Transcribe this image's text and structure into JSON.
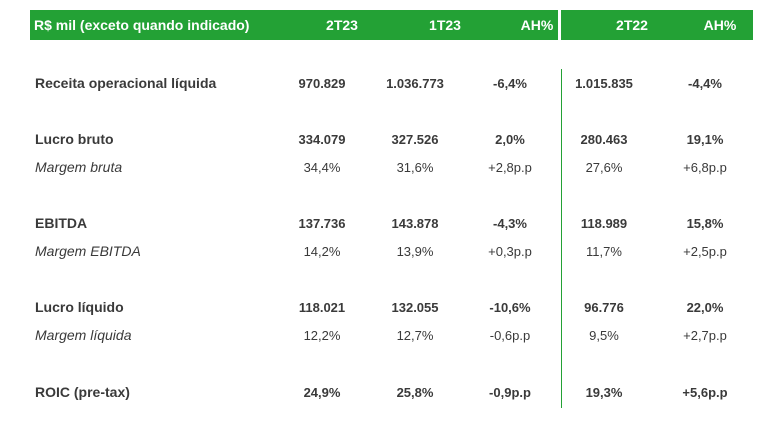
{
  "header": [
    "R$ mil (exceto quando indicado)",
    "2T23",
    "1T23",
    "AH%",
    "2T22",
    "AH%"
  ],
  "rows": [
    {
      "label": "Receita operacional líquida",
      "values": [
        "970.829",
        "1.036.773",
        "-6,4%",
        "1.015.835",
        "-4,4%"
      ],
      "style": "bold"
    },
    {
      "label": "Lucro bruto",
      "values": [
        "334.079",
        "327.526",
        "2,0%",
        "280.463",
        "19,1%"
      ],
      "style": "bold"
    },
    {
      "label": "Margem bruta",
      "values": [
        "34,4%",
        "31,6%",
        "+2,8p.p",
        "27,6%",
        "+6,8p.p"
      ],
      "style": "italic"
    },
    {
      "label": "EBITDA",
      "values": [
        "137.736",
        "143.878",
        "-4,3%",
        "118.989",
        "15,8%"
      ],
      "style": "bold"
    },
    {
      "label": "Margem EBITDA",
      "values": [
        "14,2%",
        "13,9%",
        "+0,3p.p",
        "11,7%",
        "+2,5p.p"
      ],
      "style": "italic"
    },
    {
      "label": "Lucro líquido",
      "values": [
        "118.021",
        "132.055",
        "-10,6%",
        "96.776",
        "22,0%"
      ],
      "style": "bold"
    },
    {
      "label": "Margem líquida",
      "values": [
        "12,2%",
        "12,7%",
        "-0,6p.p",
        "9,5%",
        "+2,7p.p"
      ],
      "style": "italic"
    },
    {
      "label": "ROIC (pre-tax)",
      "values": [
        "24,9%",
        "25,8%",
        "-0,9p.p",
        "19,3%",
        "+5,6p.p"
      ],
      "style": "bold"
    }
  ]
}
